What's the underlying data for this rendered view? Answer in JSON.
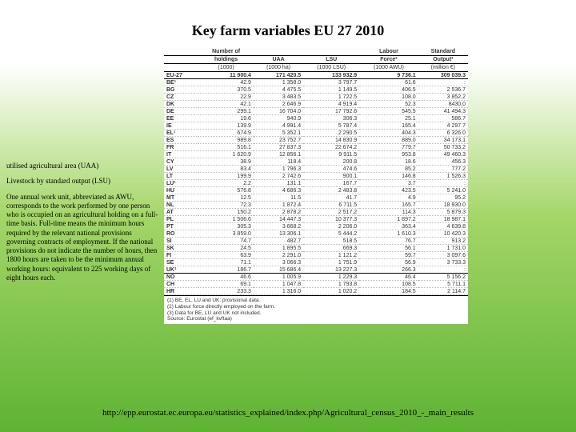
{
  "title": "Key farm variables EU 27 2010",
  "defs": {
    "uaa": "utilised agricultural area (UAA)",
    "lsu": "Livestock by standard output (LSU)",
    "awu": "One annual work unit, abbreviated as AWU, corresponds to the work performed by one person who is occupied on an agricultural holding on a full-time basis. Full-time means the minimum hours required by the relevant national provisions governing contracts of employment. If the national provisions do not indicate the number of hours, then 1800 hours are taken to be the minimum annual working hours: equivalent to 225 working days of eight hours each."
  },
  "headers": {
    "c1a": "Number of",
    "c1b": "holdings",
    "c1c": "(1000)",
    "c2a": "UAA",
    "c2c": "(1000 ha)",
    "c3a": "LSU",
    "c3c": "(1000 LSU)",
    "c4a": "Labour",
    "c4b": "Force²",
    "c4c": "(1000 AWU)",
    "c5a": "Standard",
    "c5b": "Output³",
    "c5c": "(million €)"
  },
  "rows": [
    {
      "cc": "EU-27",
      "h": "11 900.4",
      "u": "171 420.5",
      "l": "133 932.9",
      "f": "9 736.1",
      "o": "309 039.3",
      "cls": "eu"
    },
    {
      "cc": "BE¹",
      "h": "42.9",
      "u": "1 358.0",
      "l": "3 797.7",
      "f": "61.6",
      "o": ":"
    },
    {
      "cc": "BG",
      "h": "370.5",
      "u": "4 475.5",
      "l": "1 149.5",
      "f": "406.5",
      "o": "2 536.7"
    },
    {
      "cc": "CZ",
      "h": "22.9",
      "u": "3 483.5",
      "l": "1 722.5",
      "f": "108.0",
      "o": "3 852.2"
    },
    {
      "cc": "DK",
      "h": "42.1",
      "u": "2 646.9",
      "l": "4 919.4",
      "f": "52.3",
      "o": "8430,0"
    },
    {
      "cc": "DE",
      "h": "299.1",
      "u": "16 704.0",
      "l": "17 792.6",
      "f": "545.5",
      "o": "41 494.3"
    },
    {
      "cc": "EE",
      "h": "19.6",
      "u": "940.9",
      "l": "306.3",
      "f": "25.1",
      "o": "586.7"
    },
    {
      "cc": "IE",
      "h": "139.9",
      "u": "4 991.4",
      "l": "5 787.4",
      "f": "165.4",
      "o": "4 297.7"
    },
    {
      "cc": "EL¹",
      "h": "674.9",
      "u": "5 352.1",
      "l": "2 290.5",
      "f": "404.3",
      "o": "6 326.0"
    },
    {
      "cc": "ES",
      "h": "989.8",
      "u": "23 752.7",
      "l": "14 830.9",
      "f": "889.0",
      "o": "34 173.1"
    },
    {
      "cc": "FR",
      "h": "516.1",
      "u": "27 837.3",
      "l": "22 674.2",
      "f": "779.7",
      "o": "50 733.2"
    },
    {
      "cc": "IT",
      "h": "1 620.9",
      "u": "12 856.1",
      "l": "9 911.5",
      "f": "953.8",
      "o": "49 460.3"
    },
    {
      "cc": "CY",
      "h": "38.9",
      "u": "118.4",
      "l": "200.8",
      "f": "18.6",
      "o": "456.3"
    },
    {
      "cc": "LV",
      "h": "83.4",
      "u": "1 796.3",
      "l": "474.6",
      "f": "85.2",
      "o": "777.2"
    },
    {
      "cc": "LT",
      "h": "199.9",
      "u": "2 742.6",
      "l": "900.1",
      "f": "146.8",
      "o": "1 526.3"
    },
    {
      "cc": "LU¹",
      "h": "2.2",
      "u": "131.1",
      "l": "167.7",
      "f": "3.7",
      "o": ":"
    },
    {
      "cc": "HU",
      "h": "576.8",
      "u": "4 686.3",
      "l": "2 483.8",
      "f": "423.5",
      "o": "5 241.0"
    },
    {
      "cc": "MT",
      "h": "12.5",
      "u": "11.5",
      "l": "41.7",
      "f": "4.9",
      "o": "95.2"
    },
    {
      "cc": "NL",
      "h": "72.3",
      "u": "1 872.4",
      "l": "6 711.5",
      "f": "165.7",
      "o": "18 930.0"
    },
    {
      "cc": "AT",
      "h": "150.2",
      "u": "2 878.2",
      "l": "2 517.2",
      "f": "114.3",
      "o": "5 879.3"
    },
    {
      "cc": "PL",
      "h": "1 506.6",
      "u": "14 447.3",
      "l": "10 377.3",
      "f": "1 897.2",
      "o": "18 987.1"
    },
    {
      "cc": "PT",
      "h": "305.3",
      "u": "3 668.2",
      "l": "2 206.0",
      "f": "363.4",
      "o": "4 639.8"
    },
    {
      "cc": "RO",
      "h": "3 859.0",
      "u": "13 306.1",
      "l": "5 444.2",
      "f": "1 610.3",
      "o": "10 420.3"
    },
    {
      "cc": "SI",
      "h": "74.7",
      "u": "482.7",
      "l": "518.5",
      "f": "76.7",
      "o": "913.2"
    },
    {
      "cc": "SK",
      "h": "24.5",
      "u": "1 895.5",
      "l": "669.3",
      "f": "56.1",
      "o": "1 731.0"
    },
    {
      "cc": "FI",
      "h": "63.9",
      "u": "2 291.0",
      "l": "1 121.2",
      "f": "59.7",
      "o": "3 097.6"
    },
    {
      "cc": "SE",
      "h": "71.1",
      "u": "3 066.3",
      "l": "1 751.9",
      "f": "56.9",
      "o": "3 733.3"
    },
    {
      "cc": "UK¹",
      "h": "186.7",
      "u": "15 686.4",
      "l": "13 227.3",
      "f": "266.3",
      "o": ":",
      "cls": "sep"
    },
    {
      "cc": "NO",
      "h": "46.6",
      "u": "1 005.9",
      "l": "1 229.3",
      "f": "46.4",
      "o": "5 156.2"
    },
    {
      "cc": "CH",
      "h": "69.1",
      "u": "1 047.8",
      "l": "1 793.8",
      "f": "108.5",
      "o": "5 711.1"
    },
    {
      "cc": "HR",
      "h": "233.3",
      "u": "1 316.0",
      "l": "1 020.2",
      "f": "184.5",
      "o": "2 114.7"
    }
  ],
  "footnotes": {
    "f1": "(1) BE, EL, LU and UK: provisional data.",
    "f2": "(2) Labour force directly employed on the farm.",
    "f3": "(3) Data for BE, LU and UK not included.",
    "src": "Source: Eurostat (ef_kvftaa)"
  },
  "source_link": "http://epp.eurostat.ec.europa.eu/statistics_explained/index.php/Agricultural_census_2010_-_main_results"
}
